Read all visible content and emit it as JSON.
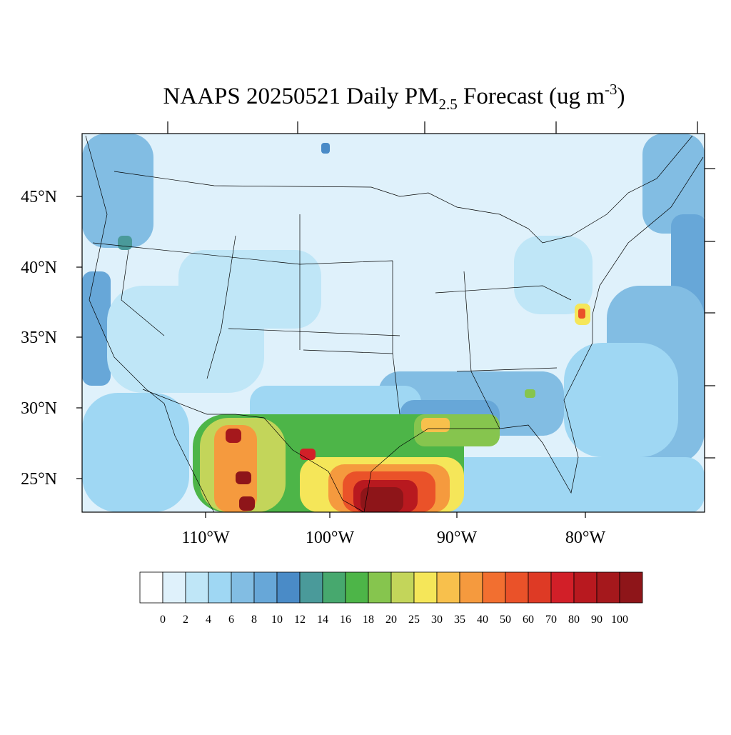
{
  "title": {
    "main": "NAAPS 20250521 Daily PM",
    "sub": "2.5",
    "rest": " Forecast (ug m",
    "sup": "-3",
    "end": ")"
  },
  "lat_labels": [
    "45°N",
    "40°N",
    "35°N",
    "30°N",
    "25°N"
  ],
  "lon_labels": [
    "110°W",
    "100°W",
    "90°W",
    "80°W"
  ],
  "colorbar": {
    "colors": [
      "#ffffff",
      "#dff1fb",
      "#bfe6f7",
      "#9fd7f3",
      "#82bde3",
      "#67a7d8",
      "#4a8bc7",
      "#4a9a9a",
      "#47a86e",
      "#4db548",
      "#86c54e",
      "#c3d55a",
      "#f5e659",
      "#f8c04c",
      "#f59a3e",
      "#f26f30",
      "#ea5229",
      "#de3a25",
      "#d21f28",
      "#b8191f",
      "#a5181c",
      "#8e1519"
    ],
    "labels": [
      0,
      2,
      4,
      6,
      8,
      10,
      12,
      14,
      16,
      18,
      20,
      25,
      30,
      35,
      40,
      50,
      60,
      70,
      80,
      90,
      100
    ]
  }
}
